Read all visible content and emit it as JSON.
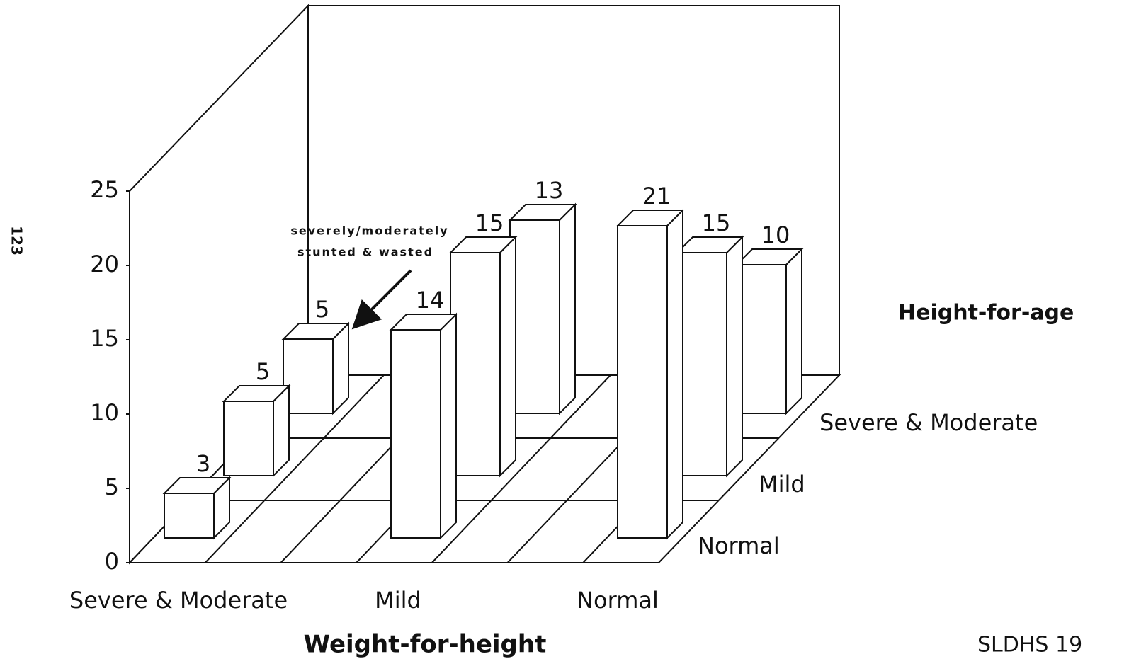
{
  "page_number": "123",
  "source": "SLDHS 19",
  "chart_data": {
    "type": "bar3d",
    "categories": [
      "Severe & Moderate",
      "Mild",
      "Normal"
    ],
    "series": [
      {
        "name": "Normal",
        "color": "#ffffff",
        "values": [
          3,
          14,
          21
        ]
      },
      {
        "name": "Mild",
        "color": "#ffffff",
        "values": [
          5,
          15,
          15
        ]
      },
      {
        "name": "Severe & Moderate",
        "color": "#ffffff",
        "values": [
          5,
          13,
          10
        ]
      }
    ],
    "ylim": [
      0,
      25
    ],
    "yticks": [
      0,
      5,
      10,
      15,
      20,
      25
    ],
    "x_label": "Weight-for-height",
    "depth_label": "Height-for-age",
    "annotation": [
      "severely/moderately",
      "stunted & wasted"
    ]
  }
}
